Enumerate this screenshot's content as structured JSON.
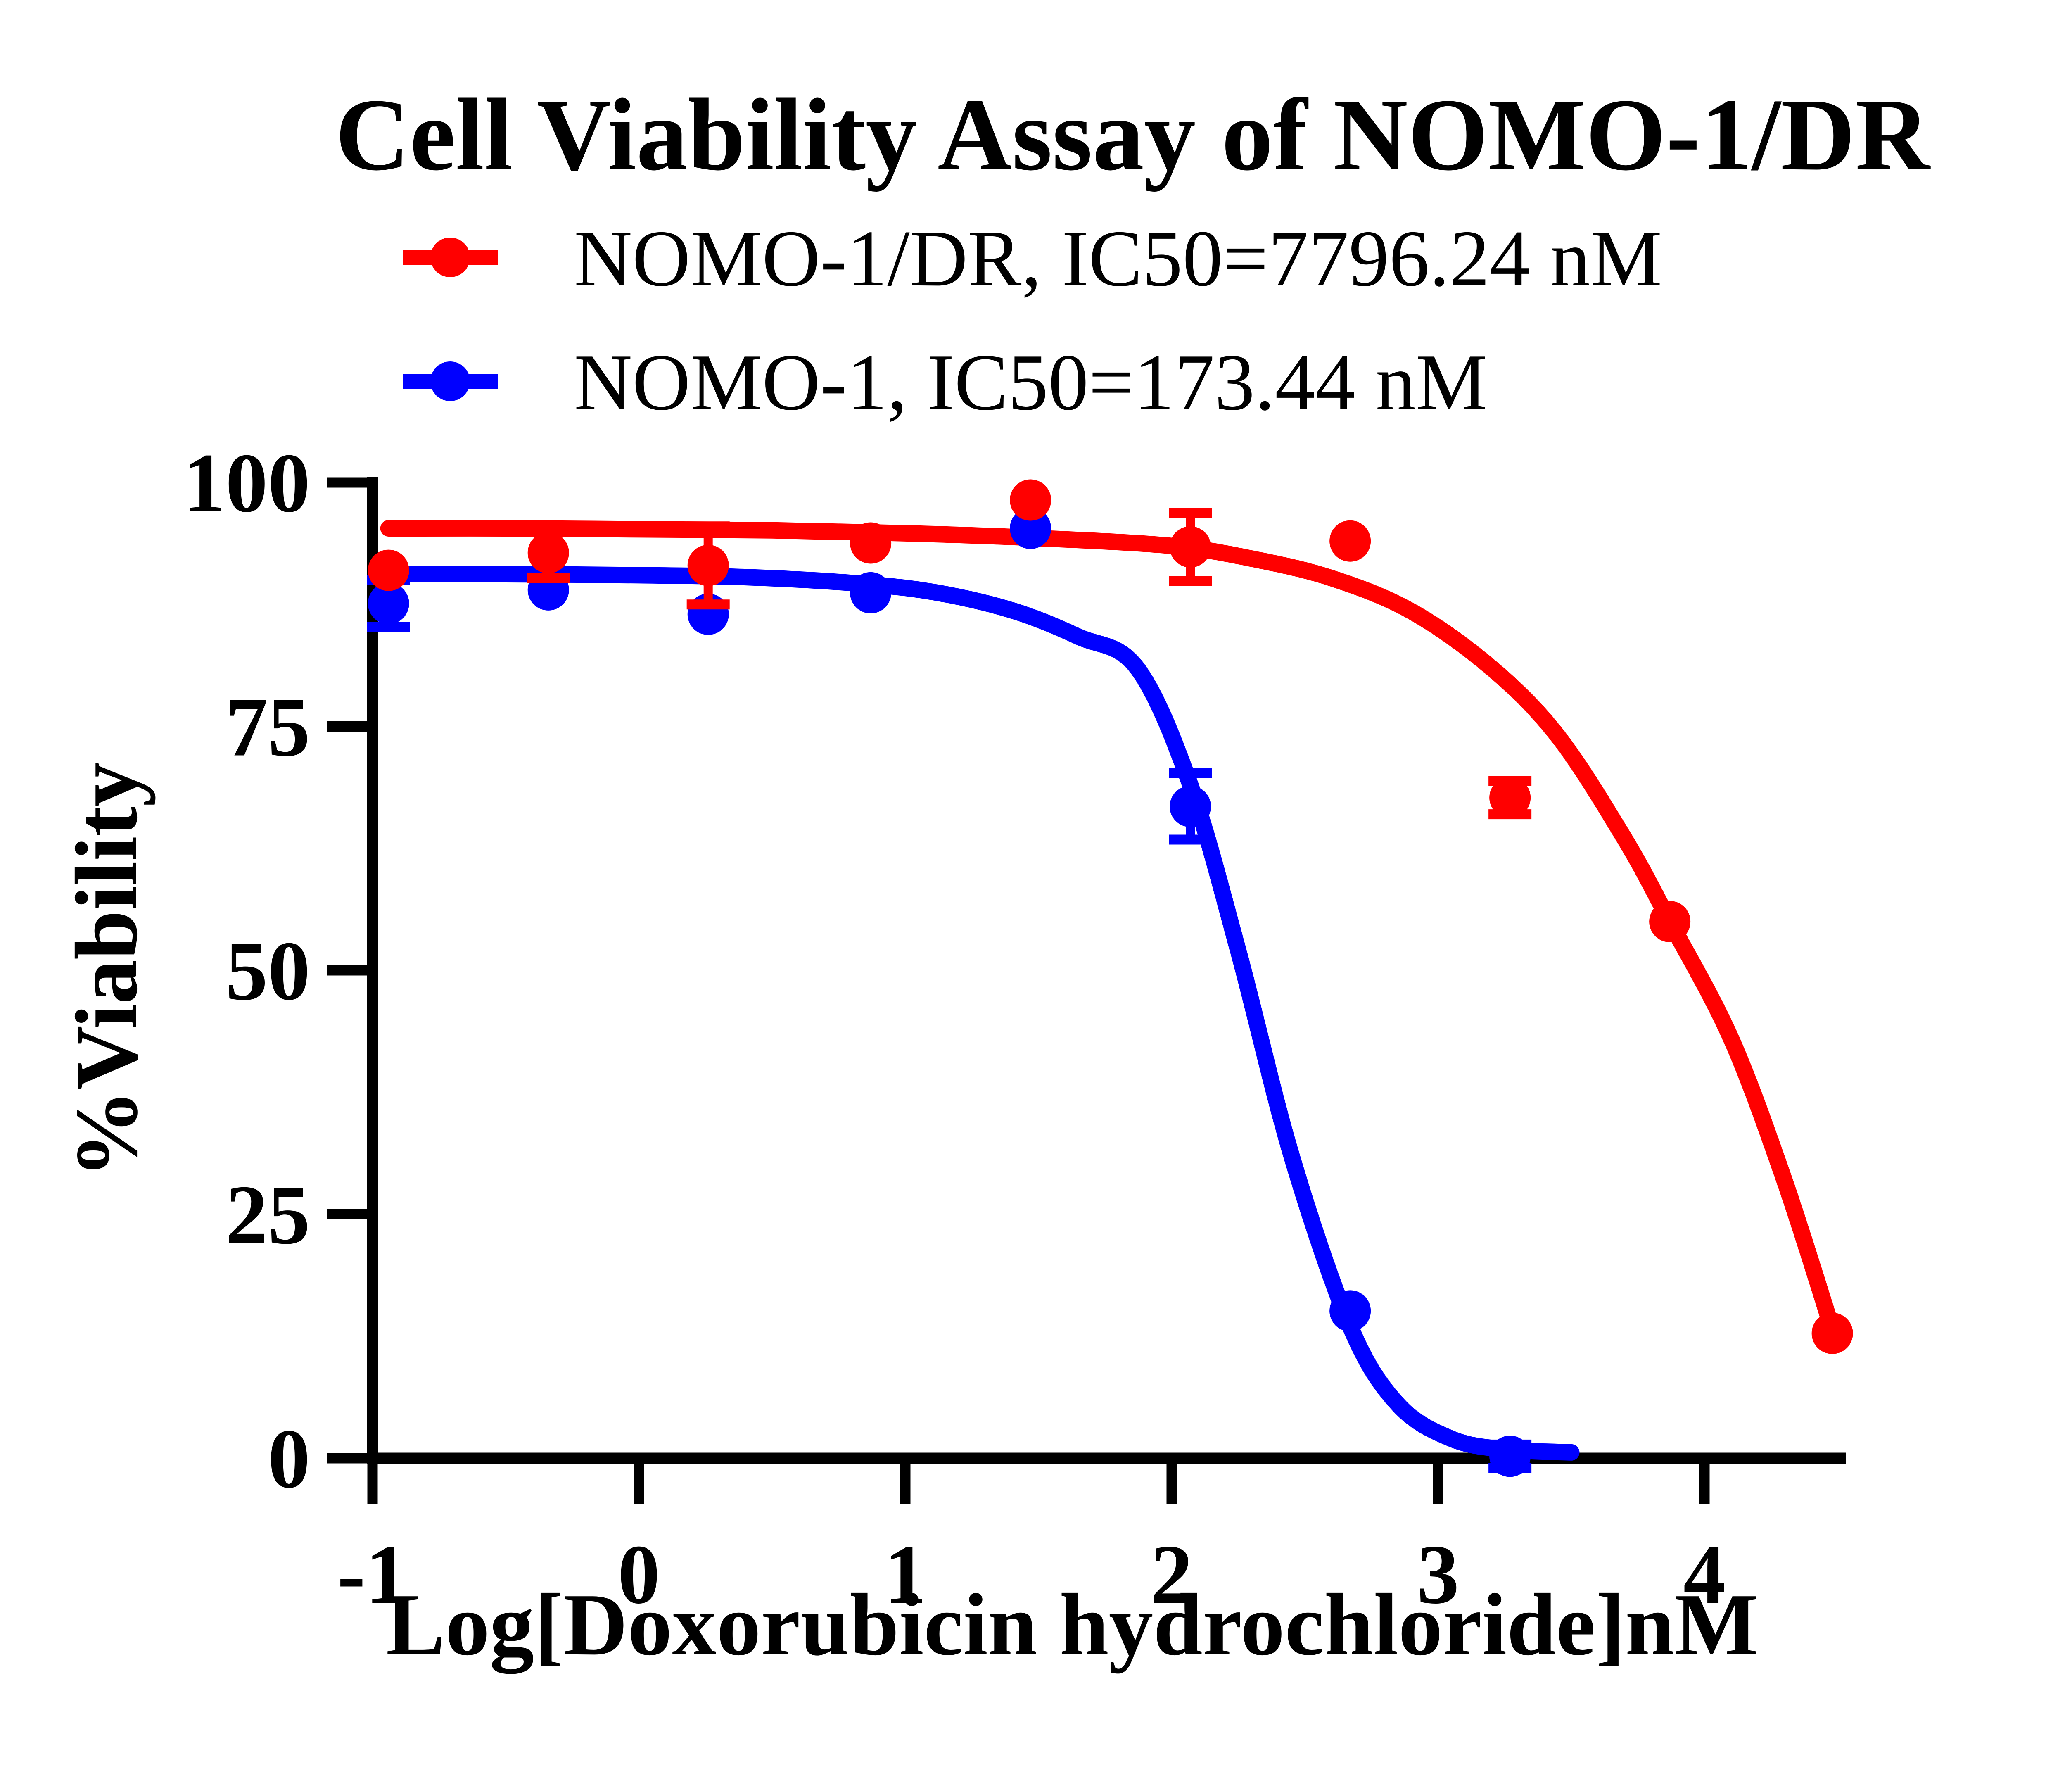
{
  "title": "Cell Viability Assay of NOMO-1/DR",
  "legend": {
    "items": [
      {
        "label": "NOMO-1/DR,  IC50=7796.24 nM",
        "color": "#ff0000"
      },
      {
        "label": "NOMO-1,  IC50=173.44 nM",
        "color": "#0000ff"
      }
    ]
  },
  "axes": {
    "x_label": "Log[Doxorubicin hydrochloride]nM",
    "y_label": "%Viability",
    "x_tick_labels": [
      "-1",
      "0",
      "1",
      "2",
      "3",
      "4"
    ],
    "y_tick_labels": [
      "100",
      "75",
      "50",
      "25",
      "0"
    ]
  },
  "chart_data": {
    "type": "scatter",
    "title": "Cell Viability Assay of NOMO-1/DR",
    "xlabel": "Log[Doxorubicin hydrochloride]nM",
    "ylabel": "%Viability",
    "xlim": [
      -1,
      4.53
    ],
    "ylim": [
      0,
      100
    ],
    "x_ticks": [
      -1,
      0,
      1,
      2,
      3,
      4
    ],
    "y_ticks": [
      100,
      75,
      50,
      25,
      0
    ],
    "grid": false,
    "legend_position": "top-left",
    "series": [
      {
        "name": "NOMO-1/DR",
        "ic50_label": "IC50=7796.24 nM",
        "color": "#ff0000",
        "x": [
          -0.94,
          -0.34,
          0.26,
          0.87,
          1.47,
          2.07,
          2.67,
          3.27,
          3.87,
          4.48
        ],
        "y": [
          91.0,
          92.8,
          91.5,
          93.8,
          98.2,
          93.4,
          94.0,
          67.7,
          55.0,
          12.8
        ],
        "err": [
          0,
          2.6,
          4.0,
          0,
          0,
          3.5,
          0,
          1.7,
          0,
          0
        ],
        "fit_x": [
          -0.94,
          -0.5,
          0,
          0.5,
          1.0,
          1.5,
          2.0,
          2.3,
          2.6,
          2.9,
          3.2,
          3.45,
          3.7,
          3.87,
          4.1,
          4.3,
          4.48
        ],
        "fit_y": [
          95.3,
          95.3,
          95.2,
          95.1,
          94.8,
          94.3,
          93.5,
          92.2,
          90.2,
          86.8,
          81.0,
          74.0,
          63.5,
          55.0,
          43.0,
          28.5,
          13.2
        ]
      },
      {
        "name": "NOMO-1",
        "ic50_label": "IC50=173.44 nM",
        "color": "#0000ff",
        "x": [
          -0.94,
          -0.34,
          0.26,
          0.87,
          1.47,
          2.07,
          2.67,
          3.27
        ],
        "y": [
          87.6,
          89.0,
          86.5,
          88.7,
          95.3,
          66.8,
          15.1,
          0.2
        ],
        "err": [
          2.4,
          0,
          0,
          0,
          0,
          3.4,
          0,
          1.2
        ],
        "fit_x": [
          -0.94,
          -0.5,
          0,
          0.4,
          0.8,
          1.1,
          1.4,
          1.65,
          1.87,
          2.07,
          2.25,
          2.45,
          2.67,
          2.85,
          3.05,
          3.25,
          3.5
        ],
        "fit_y": [
          90.6,
          90.6,
          90.5,
          90.3,
          89.7,
          88.8,
          86.9,
          84.2,
          81.0,
          69.0,
          52.0,
          31.0,
          13.5,
          5.5,
          2.0,
          0.9,
          0.6
        ]
      }
    ]
  }
}
